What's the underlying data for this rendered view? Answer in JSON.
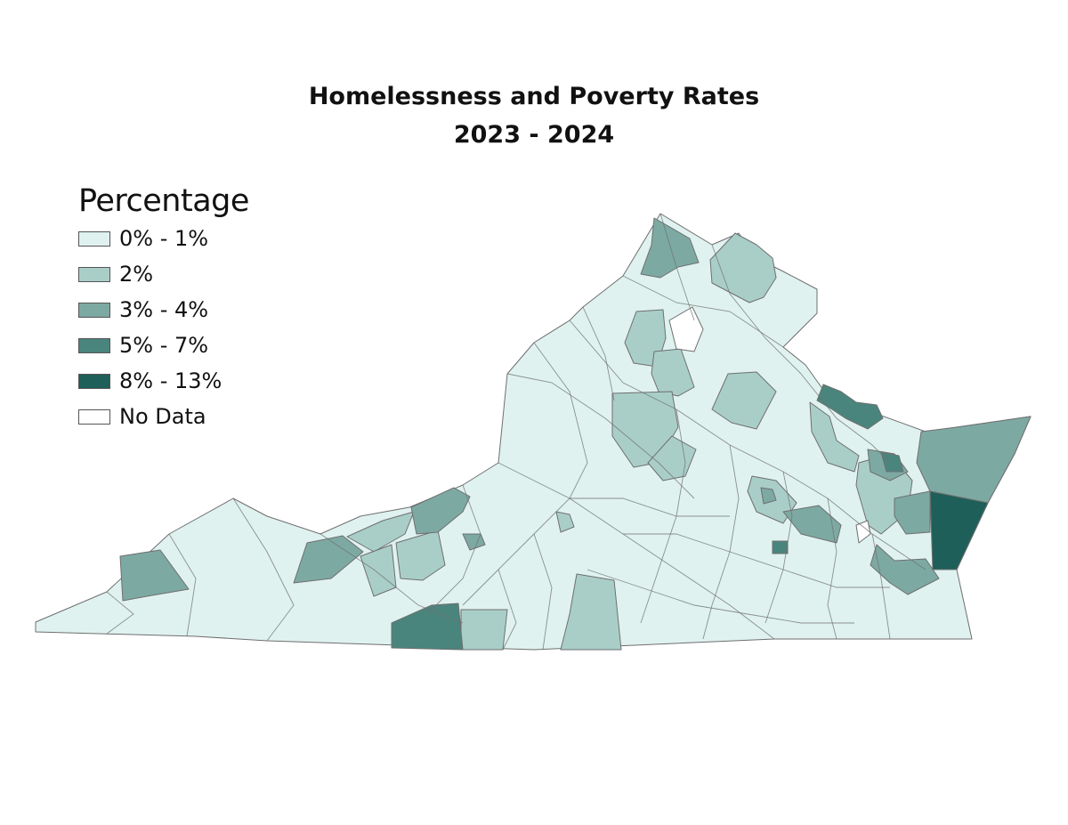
{
  "title": {
    "line1": "Homelessness and Poverty Rates",
    "line2": "2023 - 2024"
  },
  "legend": {
    "title": "Percentage",
    "items": [
      {
        "label": "0% - 1%",
        "color": "#dff2ef"
      },
      {
        "label": "2%",
        "color": "#a9cec8"
      },
      {
        "label": "3% - 4%",
        "color": "#7da9a3"
      },
      {
        "label": "5% - 7%",
        "color": "#4a857d"
      },
      {
        "label": "8% - 13%",
        "color": "#1e5f59"
      },
      {
        "label": "No Data",
        "color": "#ffffff"
      }
    ]
  },
  "map": {
    "region": "Virginia",
    "outline_color": "#6f6f6f"
  }
}
